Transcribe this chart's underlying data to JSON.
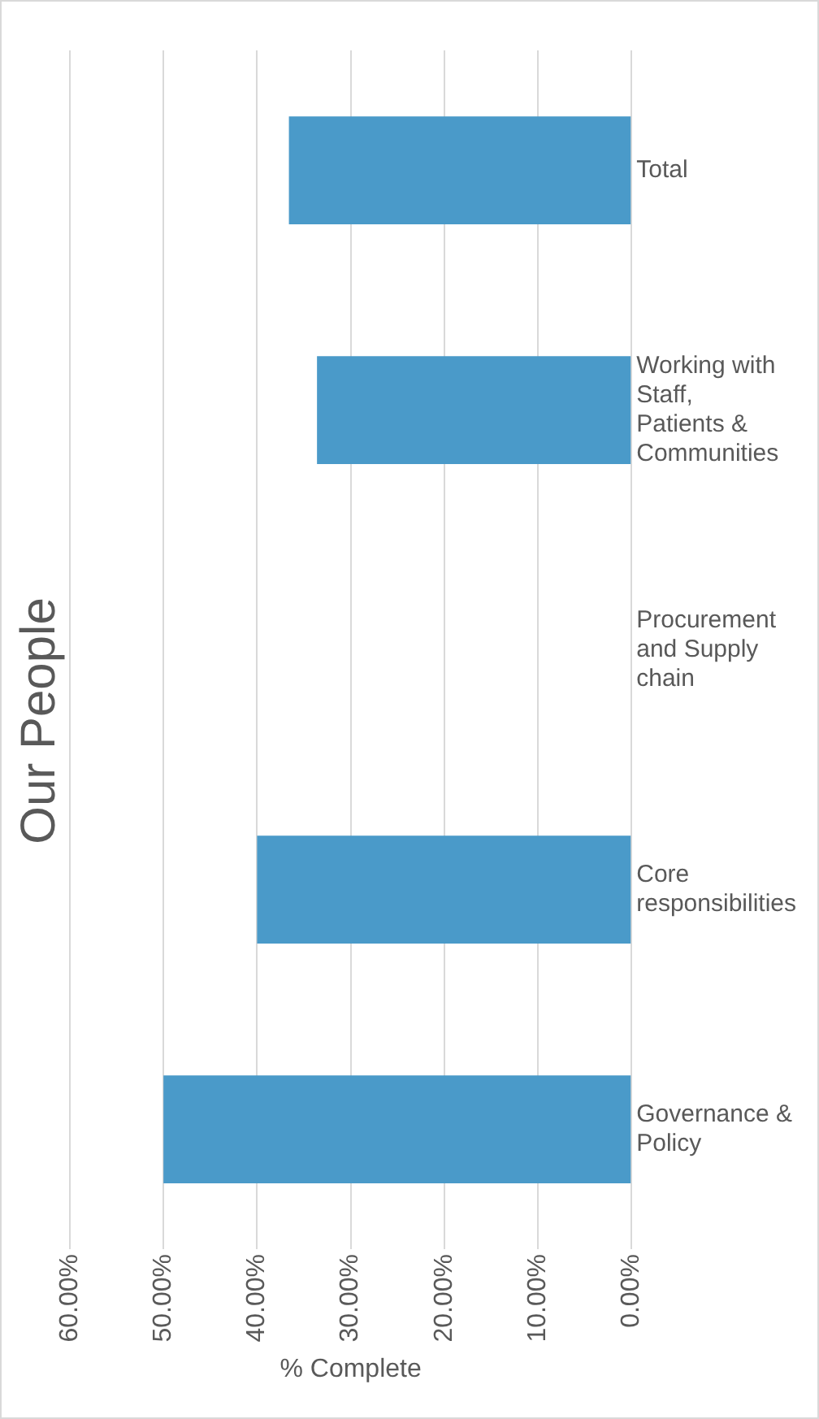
{
  "chart_data": {
    "type": "bar",
    "orientation": "horizontal",
    "title": "Our People",
    "xlabel": "% Complete",
    "categories": [
      "Total",
      "Working with Staff, Patients & Communities",
      "Procurement and Supply chain",
      "Core responsibilities",
      "Governance & Policy"
    ],
    "values": [
      36.6,
      33.6,
      0,
      40,
      50
    ],
    "color": "#4a9ac9",
    "xlim": [
      60,
      0
    ],
    "xticks": [
      {
        "value": 60,
        "label": "60.00%"
      },
      {
        "value": 50,
        "label": "50.00%"
      },
      {
        "value": 40,
        "label": "40.00%"
      },
      {
        "value": 30,
        "label": "30.00%"
      },
      {
        "value": 20,
        "label": "20.00%"
      },
      {
        "value": 10,
        "label": "10.00%"
      },
      {
        "value": 0,
        "label": "0.00%"
      }
    ],
    "grid": "x",
    "legend": false
  }
}
